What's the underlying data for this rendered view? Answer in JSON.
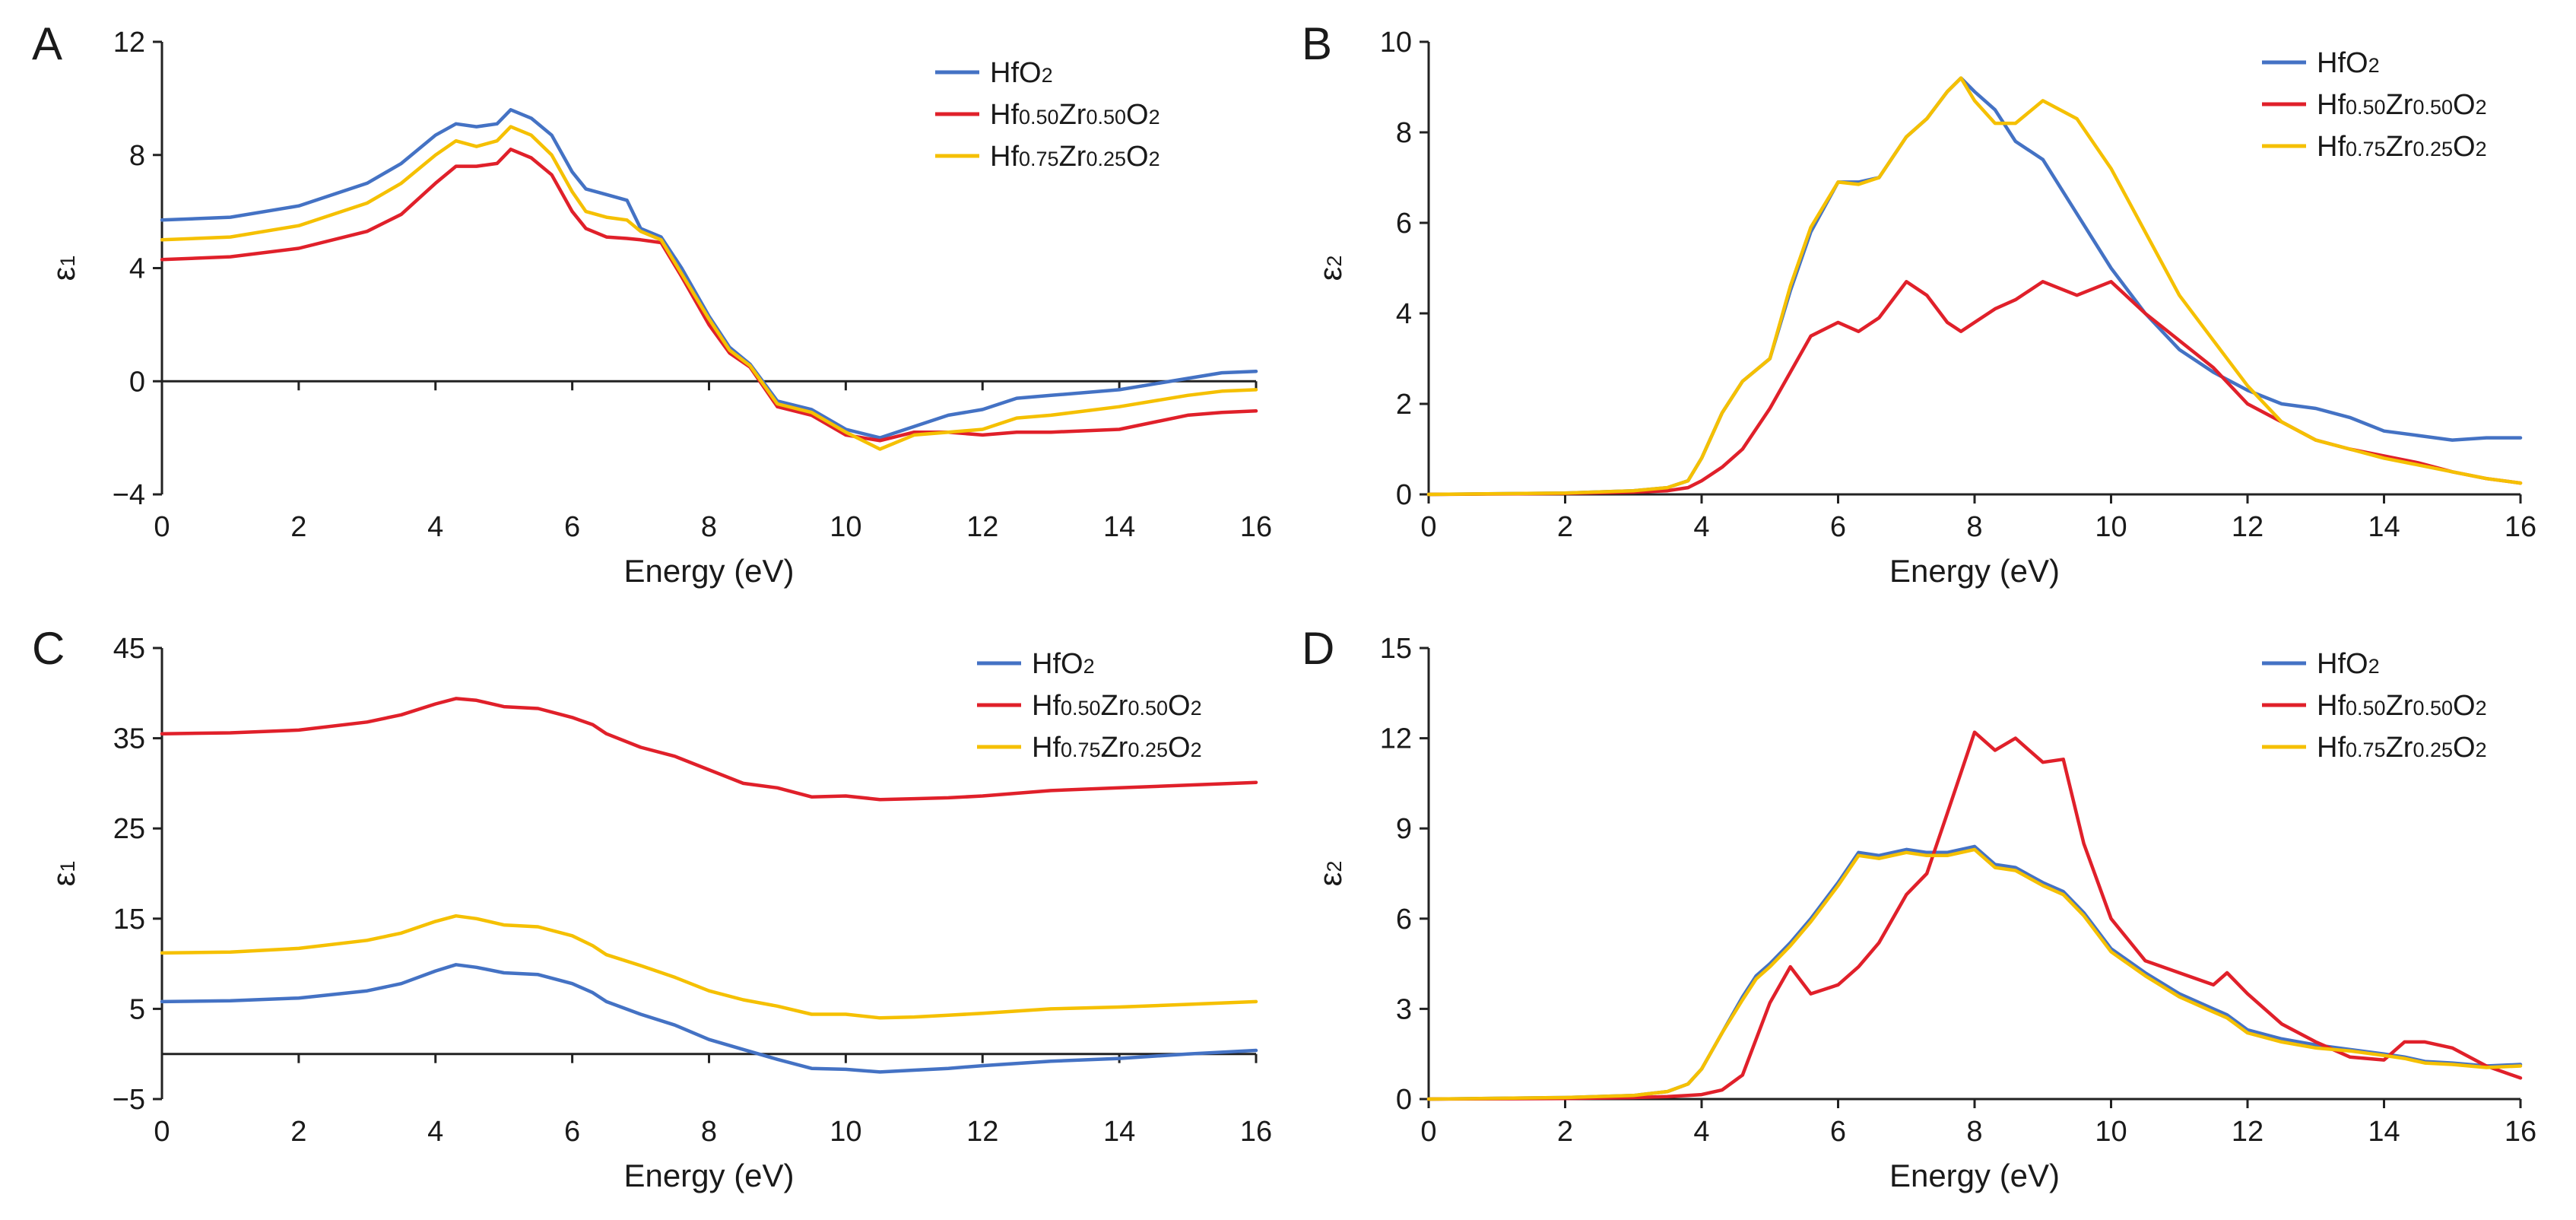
{
  "chart_data": [
    {
      "panel": "A",
      "type": "line",
      "xlabel": "Energy (eV)",
      "ylabel": "ε1",
      "xlim": [
        0,
        16
      ],
      "ylim": [
        -4,
        12
      ],
      "xticks": [
        0,
        2,
        4,
        6,
        8,
        10,
        12,
        14,
        16
      ],
      "yticks": [
        -4,
        0,
        4,
        8,
        12
      ],
      "ytick_labels": [
        "−4",
        "0",
        "4",
        "8",
        "12"
      ],
      "legend_position": "top-right",
      "x": [
        0,
        1,
        2,
        3,
        3.5,
        4,
        4.3,
        4.6,
        4.9,
        5.1,
        5.4,
        5.7,
        6,
        6.2,
        6.5,
        6.8,
        7.0,
        7.3,
        7.6,
        8.0,
        8.3,
        8.6,
        9.0,
        9.5,
        10,
        10.5,
        11,
        11.5,
        12,
        12.5,
        13,
        14,
        15,
        15.5,
        16
      ],
      "series": [
        {
          "name": "HfO2",
          "color": "#4472c4",
          "values": [
            5.7,
            5.8,
            6.2,
            7.0,
            7.7,
            8.7,
            9.1,
            9.0,
            9.1,
            9.6,
            9.3,
            8.7,
            7.4,
            6.8,
            6.6,
            6.4,
            5.4,
            5.1,
            4.0,
            2.3,
            1.2,
            0.6,
            -0.7,
            -1.0,
            -1.7,
            -2.0,
            -1.6,
            -1.2,
            -1.0,
            -0.6,
            -0.5,
            -0.3,
            0.1,
            0.3,
            0.35
          ]
        },
        {
          "name": "Hf0.50Zr0.50O2",
          "color": "#e0202a",
          "values": [
            4.3,
            4.4,
            4.7,
            5.3,
            5.9,
            7.0,
            7.6,
            7.6,
            7.7,
            8.2,
            7.9,
            7.3,
            6.0,
            5.4,
            5.1,
            5.05,
            5.0,
            4.9,
            3.7,
            2.0,
            1.0,
            0.5,
            -0.9,
            -1.2,
            -1.9,
            -2.1,
            -1.8,
            -1.8,
            -1.9,
            -1.8,
            -1.8,
            -1.7,
            -1.2,
            -1.1,
            -1.05
          ]
        },
        {
          "name": "Hf0.75Zr0.25O2",
          "color": "#f5c000",
          "values": [
            5.0,
            5.1,
            5.5,
            6.3,
            7.0,
            8.0,
            8.5,
            8.3,
            8.5,
            9.0,
            8.7,
            8.0,
            6.7,
            6.0,
            5.8,
            5.7,
            5.3,
            5.0,
            3.8,
            2.2,
            1.1,
            0.55,
            -0.8,
            -1.1,
            -1.8,
            -2.4,
            -1.9,
            -1.8,
            -1.7,
            -1.3,
            -1.2,
            -0.9,
            -0.5,
            -0.35,
            -0.3
          ]
        }
      ]
    },
    {
      "panel": "B",
      "type": "line",
      "xlabel": "Energy (eV)",
      "ylabel": "ε2",
      "xlim": [
        0,
        16
      ],
      "ylim": [
        0,
        10
      ],
      "xticks": [
        0,
        2,
        4,
        6,
        8,
        10,
        12,
        14,
        16
      ],
      "yticks": [
        0,
        2,
        4,
        6,
        8,
        10
      ],
      "ytick_labels": [
        "0",
        "2",
        "4",
        "6",
        "8",
        "10"
      ],
      "legend_position": "top-right",
      "x": [
        0,
        2,
        3,
        3.5,
        3.8,
        4.0,
        4.3,
        4.6,
        5.0,
        5.3,
        5.6,
        6.0,
        6.3,
        6.6,
        7.0,
        7.3,
        7.6,
        7.8,
        8.0,
        8.3,
        8.6,
        9.0,
        9.5,
        10,
        10.5,
        11,
        11.5,
        12,
        12.5,
        13,
        13.5,
        14,
        14.5,
        15,
        15.5,
        16
      ],
      "series": [
        {
          "name": "HfO2",
          "color": "#4472c4",
          "values": [
            0,
            0.03,
            0.08,
            0.15,
            0.3,
            0.8,
            1.8,
            2.5,
            3.0,
            4.5,
            5.8,
            6.9,
            6.9,
            7.0,
            7.9,
            8.3,
            8.9,
            9.2,
            8.9,
            8.5,
            7.8,
            7.4,
            6.2,
            5.0,
            4.0,
            3.2,
            2.7,
            2.3,
            2.0,
            1.9,
            1.7,
            1.4,
            1.3,
            1.2,
            1.25,
            1.25
          ]
        },
        {
          "name": "Hf0.50Zr0.50O2",
          "color": "#e0202a",
          "values": [
            0,
            0.02,
            0.05,
            0.08,
            0.15,
            0.3,
            0.6,
            1.0,
            1.9,
            2.7,
            3.5,
            3.8,
            3.6,
            3.9,
            4.7,
            4.4,
            3.8,
            3.6,
            3.8,
            4.1,
            4.3,
            4.7,
            4.4,
            4.7,
            4.0,
            3.4,
            2.8,
            2.0,
            1.6,
            1.2,
            1.0,
            0.85,
            0.7,
            0.5,
            0.35,
            0.25
          ]
        },
        {
          "name": "Hf0.75Zr0.25O2",
          "color": "#f5c000",
          "values": [
            0,
            0.03,
            0.08,
            0.15,
            0.3,
            0.8,
            1.8,
            2.5,
            3.0,
            4.6,
            5.9,
            6.9,
            6.85,
            7.0,
            7.9,
            8.3,
            8.9,
            9.2,
            8.7,
            8.2,
            8.2,
            8.7,
            8.3,
            7.2,
            5.8,
            4.4,
            3.4,
            2.4,
            1.6,
            1.2,
            1.0,
            0.8,
            0.65,
            0.5,
            0.35,
            0.25
          ]
        }
      ]
    },
    {
      "panel": "C",
      "type": "line",
      "xlabel": "Energy (eV)",
      "ylabel": "ε1",
      "xlim": [
        0,
        16
      ],
      "ylim": [
        -5,
        45
      ],
      "xticks": [
        0,
        2,
        4,
        6,
        8,
        10,
        12,
        14,
        16
      ],
      "yticks": [
        -5,
        5,
        15,
        25,
        35,
        45
      ],
      "ytick_labels": [
        "−5",
        "5",
        "15",
        "25",
        "35",
        "45"
      ],
      "legend_position": "top-right",
      "x": [
        0,
        1,
        2,
        3,
        3.5,
        4.0,
        4.3,
        4.6,
        5.0,
        5.5,
        6.0,
        6.3,
        6.5,
        7.0,
        7.5,
        8.0,
        8.5,
        9.0,
        9.5,
        10,
        10.5,
        11,
        11.5,
        12,
        13,
        14,
        15,
        16
      ],
      "series": [
        {
          "name": "HfO2",
          "color": "#4472c4",
          "values": [
            5.8,
            5.9,
            6.2,
            7.0,
            7.8,
            9.2,
            9.9,
            9.6,
            9.0,
            8.8,
            7.8,
            6.8,
            5.8,
            4.4,
            3.2,
            1.6,
            0.5,
            -0.6,
            -1.6,
            -1.7,
            -2.0,
            -1.8,
            -1.6,
            -1.3,
            -0.8,
            -0.5,
            0.0,
            0.4
          ]
        },
        {
          "name": "Hf0.50Zr0.50O2",
          "color": "#e0202a",
          "values": [
            35.5,
            35.6,
            35.9,
            36.8,
            37.6,
            38.8,
            39.4,
            39.2,
            38.5,
            38.3,
            37.3,
            36.5,
            35.5,
            34.0,
            33.0,
            31.5,
            30.0,
            29.5,
            28.5,
            28.6,
            28.2,
            28.3,
            28.4,
            28.6,
            29.2,
            29.5,
            29.8,
            30.1
          ]
        },
        {
          "name": "Hf0.75Zr0.25O2",
          "color": "#f5c000",
          "values": [
            11.2,
            11.3,
            11.7,
            12.6,
            13.4,
            14.7,
            15.3,
            15.0,
            14.3,
            14.1,
            13.1,
            12.0,
            11.0,
            9.8,
            8.5,
            7.0,
            6.0,
            5.3,
            4.4,
            4.4,
            4.0,
            4.1,
            4.3,
            4.5,
            5.0,
            5.2,
            5.5,
            5.8
          ]
        }
      ]
    },
    {
      "panel": "D",
      "type": "line",
      "xlabel": "Energy (eV)",
      "ylabel": "ε2",
      "xlim": [
        0,
        16
      ],
      "ylim": [
        0,
        15
      ],
      "xticks": [
        0,
        2,
        4,
        6,
        8,
        10,
        12,
        14,
        16
      ],
      "yticks": [
        0,
        3,
        6,
        9,
        12,
        15
      ],
      "ytick_labels": [
        "0",
        "3",
        "6",
        "9",
        "12",
        "15"
      ],
      "legend_position": "top-right",
      "x": [
        0,
        2,
        3,
        3.5,
        3.8,
        4.0,
        4.3,
        4.6,
        4.8,
        5.0,
        5.3,
        5.6,
        6.0,
        6.3,
        6.6,
        7.0,
        7.3,
        7.6,
        8.0,
        8.3,
        8.6,
        9.0,
        9.3,
        9.6,
        10,
        10.5,
        11,
        11.5,
        11.7,
        12,
        12.5,
        13,
        13.5,
        14,
        14.3,
        14.6,
        15,
        15.5,
        16
      ],
      "series": [
        {
          "name": "HfO2",
          "color": "#4472c4",
          "values": [
            0,
            0.05,
            0.12,
            0.25,
            0.5,
            1.0,
            2.2,
            3.4,
            4.1,
            4.5,
            5.2,
            6.0,
            7.2,
            8.2,
            8.1,
            8.3,
            8.2,
            8.2,
            8.4,
            7.8,
            7.7,
            7.2,
            6.9,
            6.2,
            5.0,
            4.2,
            3.5,
            3.0,
            2.8,
            2.3,
            2.0,
            1.8,
            1.65,
            1.5,
            1.4,
            1.25,
            1.2,
            1.1,
            1.15
          ]
        },
        {
          "name": "Hf0.50Zr0.50O2",
          "color": "#e0202a",
          "values": [
            0,
            0.02,
            0.05,
            0.08,
            0.12,
            0.15,
            0.3,
            0.8,
            2.0,
            3.2,
            4.4,
            3.5,
            3.8,
            4.4,
            5.2,
            6.8,
            7.5,
            9.5,
            12.2,
            11.6,
            12.0,
            11.2,
            11.3,
            8.5,
            6.0,
            4.6,
            4.2,
            3.8,
            4.2,
            3.5,
            2.5,
            1.9,
            1.4,
            1.3,
            1.9,
            1.9,
            1.7,
            1.1,
            0.7
          ]
        },
        {
          "name": "Hf0.75Zr0.25O2",
          "color": "#f5c000",
          "values": [
            0,
            0.05,
            0.12,
            0.25,
            0.5,
            1.0,
            2.2,
            3.3,
            4.0,
            4.4,
            5.1,
            5.9,
            7.1,
            8.1,
            8.0,
            8.2,
            8.1,
            8.1,
            8.3,
            7.7,
            7.6,
            7.1,
            6.8,
            6.1,
            4.9,
            4.1,
            3.4,
            2.9,
            2.7,
            2.2,
            1.9,
            1.7,
            1.6,
            1.45,
            1.35,
            1.2,
            1.15,
            1.05,
            1.1
          ]
        }
      ]
    }
  ]
}
